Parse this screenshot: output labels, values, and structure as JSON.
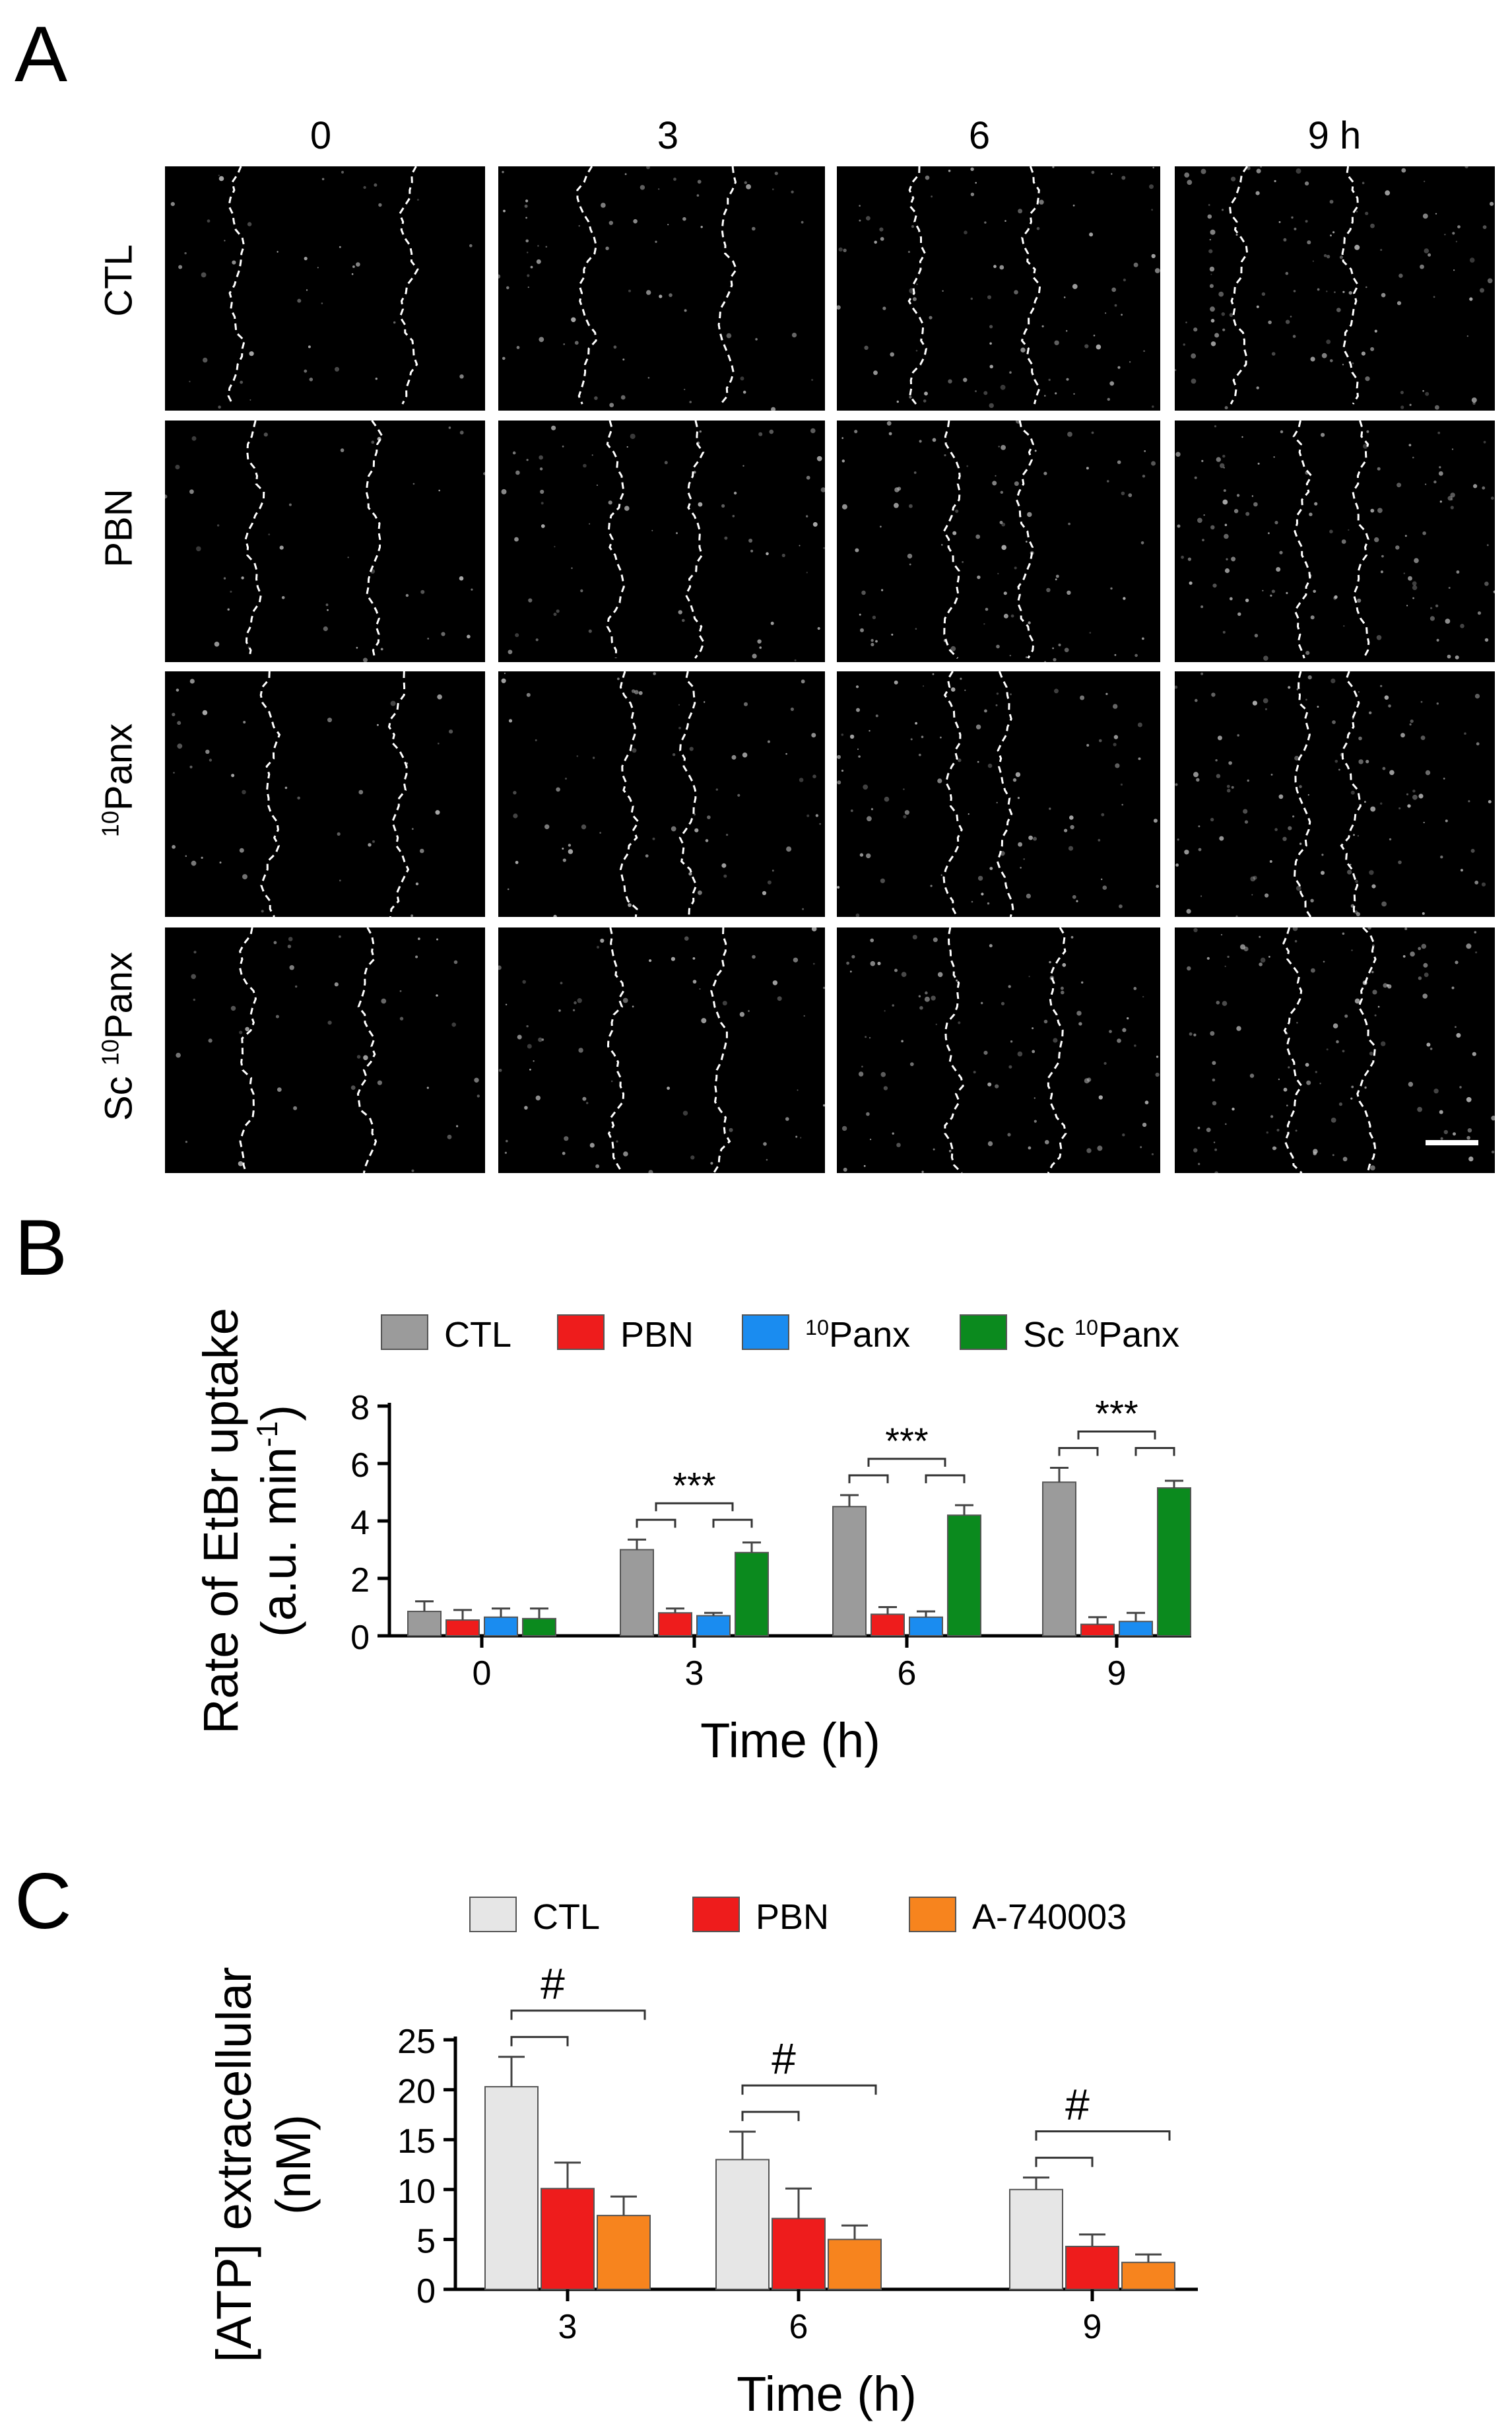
{
  "panel_a": {
    "letter": "A",
    "columns": [
      "0",
      "3",
      "6",
      "9 h"
    ],
    "rows": [
      {
        "label": "CTL",
        "sup": "",
        "suffix": ""
      },
      {
        "label": "PBN",
        "sup": "",
        "suffix": ""
      },
      {
        "label": "",
        "sup": "10",
        "suffix": "Panx"
      },
      {
        "label": "Sc ",
        "sup": "10",
        "suffix": "Panx"
      }
    ]
  },
  "panel_b": {
    "letter": "B"
  },
  "panel_c": {
    "letter": "C"
  },
  "chart_data": [
    {
      "type": "bar",
      "ylabel_line1": "Rate of EtBr uptake",
      "ylabel_line2": "(a.u. min",
      "ylabel_sup": "-1",
      "ylabel_close": ")",
      "xlabel": "Time (h)",
      "categories": [
        "0",
        "3",
        "6",
        "9"
      ],
      "ylim": [
        0,
        8
      ],
      "yticks": [
        "0",
        "2",
        "4",
        "6",
        "8"
      ],
      "legend_placement": "top",
      "series": [
        {
          "name": "CTL",
          "color": "#9b9b9b",
          "values": [
            0.85,
            3.0,
            4.5,
            5.35
          ],
          "errors": [
            0.35,
            0.35,
            0.4,
            0.5
          ]
        },
        {
          "name": "PBN",
          "color": "#ee1c1c",
          "values": [
            0.55,
            0.8,
            0.75,
            0.4
          ],
          "errors": [
            0.35,
            0.15,
            0.25,
            0.25
          ]
        },
        {
          "name": "10Panx",
          "name_sup": "10",
          "name_text": "Panx",
          "color": "#1a8cf0",
          "values": [
            0.65,
            0.7,
            0.65,
            0.5
          ],
          "errors": [
            0.3,
            0.1,
            0.2,
            0.3
          ]
        },
        {
          "name": "Sc 10Panx",
          "name_prefix": "Sc ",
          "name_sup": "10",
          "name_text": "Panx",
          "color": "#0b8a1e",
          "values": [
            0.6,
            2.9,
            4.2,
            5.15
          ],
          "errors": [
            0.35,
            0.35,
            0.35,
            0.25
          ]
        }
      ],
      "annotations": [
        {
          "category": "3",
          "label": "***"
        },
        {
          "category": "6",
          "label": "***"
        },
        {
          "category": "9",
          "label": "***"
        }
      ]
    },
    {
      "type": "bar",
      "ylabel_line1": "[ATP] extracellular",
      "ylabel_line2": "(nM)",
      "xlabel": "Time (h)",
      "categories": [
        "3",
        "6",
        "9"
      ],
      "ylim": [
        0,
        25
      ],
      "yticks": [
        "0",
        "5",
        "10",
        "15",
        "20",
        "25"
      ],
      "legend_placement": "top",
      "series": [
        {
          "name": "CTL",
          "color": "#e6e6e6",
          "values": [
            20.3,
            13.0,
            10.0
          ],
          "errors": [
            3.0,
            2.8,
            1.2
          ]
        },
        {
          "name": "PBN",
          "color": "#ee1c1c",
          "values": [
            10.1,
            7.1,
            4.3
          ],
          "errors": [
            2.6,
            3.0,
            1.2
          ]
        },
        {
          "name": "A-740003",
          "color": "#f7841e",
          "values": [
            7.4,
            5.0,
            2.7
          ],
          "errors": [
            1.9,
            1.4,
            0.8
          ]
        }
      ],
      "annotations": [
        {
          "category": "3",
          "label": "#"
        },
        {
          "category": "6",
          "label": "#"
        },
        {
          "category": "9",
          "label": "#"
        }
      ]
    }
  ]
}
